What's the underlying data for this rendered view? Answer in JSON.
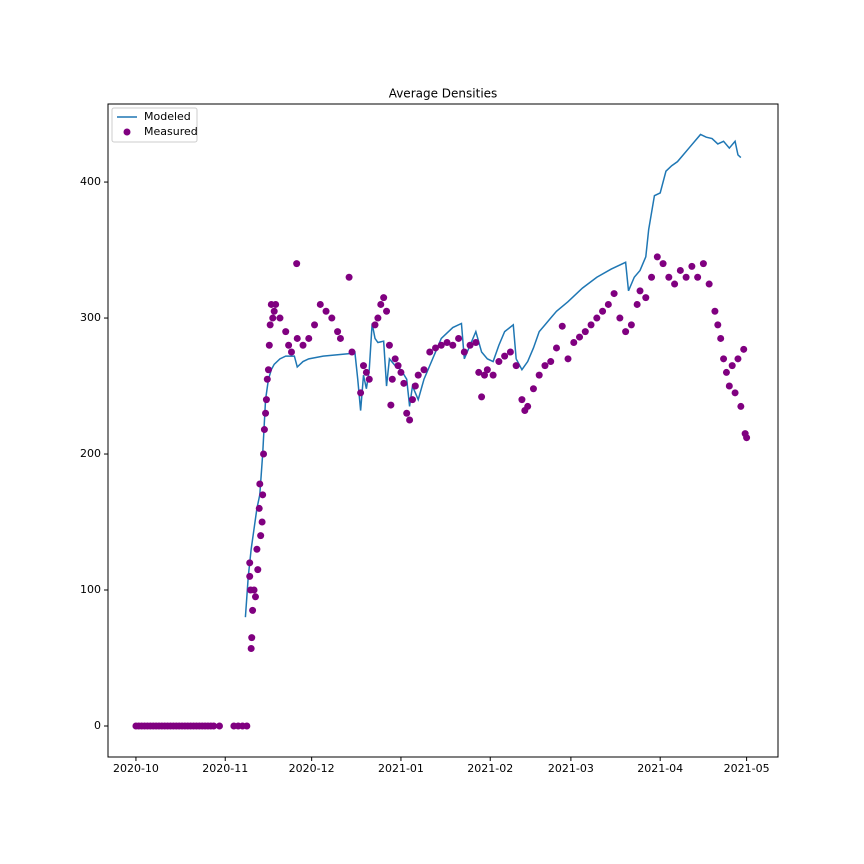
{
  "chart_data": {
    "type": "combo",
    "title": "Average Densities",
    "xlim": [
      -9.7,
      222.9
    ],
    "xticks": [
      {
        "value": 0,
        "label": "2020-10"
      },
      {
        "value": 31,
        "label": "2020-11"
      },
      {
        "value": 61,
        "label": "2020-12"
      },
      {
        "value": 92,
        "label": "2021-01"
      },
      {
        "value": 123,
        "label": "2021-02"
      },
      {
        "value": 151,
        "label": "2021-03"
      },
      {
        "value": 182,
        "label": "2021-04"
      },
      {
        "value": 212,
        "label": "2021-05"
      }
    ],
    "ylim": [
      -22.8,
      457.4
    ],
    "yticks": [
      0,
      100,
      200,
      300,
      400
    ],
    "legend": "upper left",
    "series": [
      {
        "name": "Modeled",
        "type": "line",
        "color": "#1f77b4",
        "x": [
          38,
          39,
          40,
          41,
          42,
          43,
          44,
          45,
          46,
          47,
          48,
          50,
          52,
          55,
          56,
          58,
          60,
          65,
          70,
          75,
          76,
          77,
          78,
          79,
          80,
          81,
          82,
          83,
          84,
          86,
          87,
          88,
          90,
          92,
          94,
          95,
          96,
          98,
          100,
          102,
          104,
          106,
          110,
          113,
          114,
          116,
          118,
          120,
          122,
          124,
          126,
          128,
          131,
          132,
          134,
          136,
          138,
          140,
          142,
          144,
          146,
          150,
          155,
          160,
          165,
          170,
          171,
          173,
          175,
          177,
          178,
          180,
          182,
          184,
          186,
          188,
          190,
          192,
          196,
          198,
          200,
          202,
          204,
          206,
          208,
          209,
          210
        ],
        "values": [
          80,
          110,
          130,
          145,
          160,
          170,
          200,
          240,
          255,
          262,
          266,
          270,
          272,
          272,
          264,
          268,
          270,
          272,
          273,
          274,
          275,
          255,
          232,
          258,
          248,
          262,
          296,
          285,
          282,
          283,
          250,
          270,
          265,
          262,
          255,
          235,
          250,
          240,
          255,
          265,
          275,
          285,
          293,
          296,
          270,
          280,
          290,
          275,
          270,
          268,
          280,
          290,
          295,
          270,
          262,
          268,
          278,
          290,
          295,
          300,
          305,
          312,
          322,
          330,
          336,
          341,
          320,
          330,
          335,
          345,
          365,
          390,
          392,
          408,
          412,
          415,
          420,
          425,
          435,
          433,
          432,
          428,
          430,
          425,
          430,
          420,
          418
        ]
      },
      {
        "name": "Measured",
        "type": "scatter",
        "color": "#800080",
        "x": [
          0,
          1,
          2,
          3,
          4,
          5,
          6,
          7,
          8,
          9,
          10,
          11,
          12,
          13,
          14,
          15,
          16,
          17,
          18,
          19,
          20,
          21,
          22,
          23,
          24,
          25,
          26,
          27,
          29,
          34,
          35.5,
          37,
          38.5,
          39.5,
          39.5,
          39.8,
          40,
          40.2,
          40.5,
          41,
          41.5,
          42,
          42.3,
          42.8,
          43,
          43.3,
          43.8,
          44,
          44.3,
          44.6,
          45,
          45.3,
          45.6,
          46,
          46.3,
          46.6,
          47,
          47.5,
          48,
          48.5,
          50,
          52,
          53,
          54,
          55.8,
          56,
          58,
          60,
          62,
          64,
          66,
          68,
          70,
          71,
          74,
          75,
          78,
          79,
          80,
          81,
          83,
          84,
          85,
          86,
          87,
          88,
          88.5,
          89,
          90,
          91,
          92,
          93,
          94,
          95,
          96,
          97,
          98,
          100,
          102,
          104,
          106,
          108,
          110,
          112,
          114,
          116,
          118,
          119,
          120,
          121,
          122,
          124,
          126,
          128,
          130,
          132,
          134,
          135,
          136,
          138,
          140,
          142,
          144,
          146,
          148,
          150,
          152,
          154,
          156,
          158,
          160,
          162,
          164,
          166,
          168,
          170,
          172,
          174,
          175,
          177,
          179,
          181,
          183,
          185,
          187,
          189,
          191,
          193,
          195,
          197,
          199,
          201,
          202,
          203,
          204,
          205,
          206,
          207,
          208,
          209,
          210,
          211,
          211.5,
          212
        ],
        "values": [
          0,
          0,
          0,
          0,
          0,
          0,
          0,
          0,
          0,
          0,
          0,
          0,
          0,
          0,
          0,
          0,
          0,
          0,
          0,
          0,
          0,
          0,
          0,
          0,
          0,
          0,
          0,
          0,
          0,
          0,
          0,
          0,
          0,
          120,
          110,
          100,
          57,
          65,
          85,
          100,
          95,
          130,
          115,
          160,
          178,
          140,
          150,
          170,
          200,
          218,
          230,
          240,
          255,
          262,
          280,
          295,
          310,
          300,
          305,
          310,
          300,
          290,
          280,
          275,
          340,
          285,
          280,
          285,
          295,
          310,
          305,
          300,
          290,
          285,
          330,
          275,
          245,
          265,
          260,
          255,
          295,
          300,
          310,
          315,
          305,
          280,
          236,
          255,
          270,
          265,
          260,
          252,
          230,
          225,
          240,
          250,
          258,
          262,
          275,
          278,
          280,
          282,
          280,
          285,
          275,
          280,
          282,
          260,
          242,
          258,
          262,
          258,
          268,
          272,
          275,
          265,
          240,
          232,
          235,
          248,
          258,
          265,
          268,
          278,
          294,
          270,
          282,
          286,
          290,
          295,
          300,
          305,
          310,
          318,
          300,
          290,
          295,
          310,
          320,
          315,
          330,
          345,
          340,
          330,
          325,
          335,
          330,
          338,
          330,
          340,
          325,
          305,
          295,
          285,
          270,
          260,
          250,
          265,
          245,
          270,
          235,
          277,
          215,
          212
        ]
      }
    ]
  }
}
